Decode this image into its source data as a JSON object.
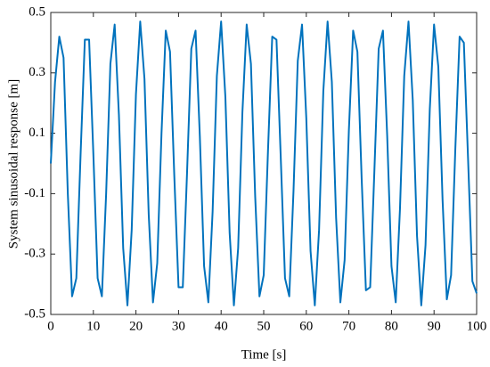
{
  "chart_data": {
    "type": "line",
    "xlabel": "Time [s]",
    "ylabel": "System sinusoidal response [m]",
    "x": [
      0,
      1,
      2,
      3,
      4,
      5,
      6,
      7,
      8,
      9,
      10,
      11,
      12,
      13,
      14,
      15,
      16,
      17,
      18,
      19,
      20,
      21,
      22,
      23,
      24,
      25,
      26,
      27,
      28,
      29,
      30,
      31,
      32,
      33,
      34,
      35,
      36,
      37,
      38,
      39,
      40,
      41,
      42,
      43,
      44,
      45,
      46,
      47,
      48,
      49,
      50,
      51,
      52,
      53,
      54,
      55,
      56,
      57,
      58,
      59,
      60,
      61,
      62,
      63,
      64,
      65,
      66,
      67,
      68,
      69,
      70,
      71,
      72,
      73,
      74,
      75,
      76,
      77,
      78,
      79,
      80,
      81,
      82,
      83,
      84,
      85,
      86,
      87,
      88,
      89,
      90,
      91,
      92,
      93,
      94,
      95,
      96,
      97,
      98,
      99,
      100
    ],
    "series": [
      {
        "color": "#0072bd",
        "values": [
          0.0,
          0.27,
          0.42,
          0.35,
          -0.1,
          -0.44,
          -0.38,
          0.03,
          0.41,
          0.41,
          0.03,
          -0.38,
          -0.44,
          -0.1,
          0.33,
          0.46,
          0.16,
          -0.28,
          -0.47,
          -0.22,
          0.23,
          0.47,
          0.28,
          -0.17,
          -0.46,
          -0.33,
          0.1,
          0.44,
          0.37,
          -0.04,
          -0.41,
          -0.41,
          -0.03,
          0.38,
          0.44,
          0.09,
          -0.34,
          -0.46,
          -0.16,
          0.29,
          0.47,
          0.22,
          -0.23,
          -0.47,
          -0.28,
          0.17,
          0.46,
          0.33,
          -0.11,
          -0.44,
          -0.37,
          0.04,
          0.42,
          0.41,
          0.02,
          -0.38,
          -0.44,
          -0.09,
          0.34,
          0.46,
          0.15,
          -0.29,
          -0.47,
          -0.22,
          0.24,
          0.47,
          0.27,
          -0.18,
          -0.46,
          -0.32,
          0.11,
          0.44,
          0.37,
          -0.05,
          -0.42,
          -0.41,
          -0.02,
          0.38,
          0.44,
          0.09,
          -0.34,
          -0.46,
          -0.15,
          0.29,
          0.47,
          0.21,
          -0.24,
          -0.47,
          -0.27,
          0.18,
          0.46,
          0.32,
          -0.12,
          -0.45,
          -0.37,
          0.05,
          0.42,
          0.4,
          0.01,
          -0.39,
          -0.43
        ]
      }
    ],
    "xlim": [
      0,
      100
    ],
    "xticks": [
      0,
      10,
      20,
      30,
      40,
      50,
      60,
      70,
      80,
      90,
      100
    ],
    "ylim": [
      -0.5,
      0.5
    ],
    "yticks": [
      -0.5,
      -0.3,
      -0.1,
      0.1,
      0.3,
      0.5
    ]
  }
}
